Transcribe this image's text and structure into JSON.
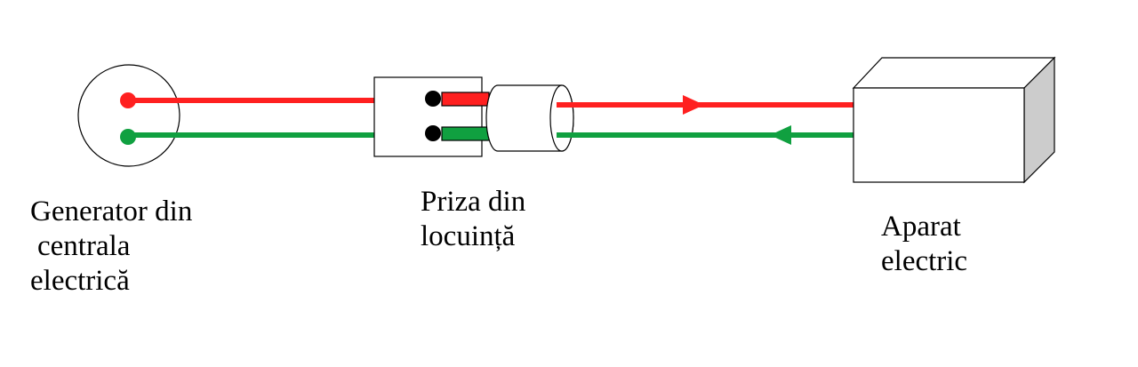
{
  "labels": {
    "generator": [
      "Generator din",
      "centrala",
      "electrică"
    ],
    "socket": [
      "Priza din",
      "locuință"
    ],
    "device": [
      "Aparat",
      "electric"
    ]
  },
  "colors": {
    "phase_wire": "#ff2020",
    "neutral_wire": "#10a040",
    "box_side": "#cccccc",
    "outline": "#000000"
  }
}
